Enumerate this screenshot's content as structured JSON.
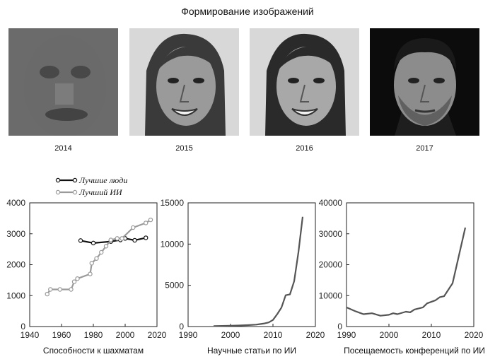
{
  "title": "Формирование изображений",
  "faces": [
    {
      "year": "2014",
      "tone": "#6a6a6a",
      "hair": "#2c2c2c",
      "style": "blurry"
    },
    {
      "year": "2015",
      "tone": "#9a9a9a",
      "hair": "#3a3a3a",
      "style": "woman"
    },
    {
      "year": "2016",
      "tone": "#a8a8a8",
      "hair": "#2a2a2a",
      "style": "woman"
    },
    {
      "year": "2017",
      "tone": "#8c8c8c",
      "hair": "#1a1a1a",
      "style": "man"
    }
  ],
  "chart_data": [
    {
      "type": "line",
      "xlabel": "Способности к шахматам",
      "xlim": [
        1940,
        2020
      ],
      "ylim": [
        0,
        4000
      ],
      "xticks": [
        1940,
        1960,
        1980,
        2000,
        2020
      ],
      "yticks": [
        0,
        1000,
        2000,
        3000,
        4000
      ],
      "legend": "top-left, above plot",
      "series": [
        {
          "name": "Лучшие люди",
          "color": "#111111",
          "markers": true,
          "x": [
            1972,
            1980,
            1991,
            1997,
            2000,
            2006,
            2013
          ],
          "y": [
            2780,
            2700,
            2750,
            2800,
            2850,
            2790,
            2870
          ]
        },
        {
          "name": "Лучший ИИ",
          "color": "#9a9a9a",
          "markers": true,
          "x": [
            1951,
            1953,
            1959,
            1966,
            1968,
            1970,
            1978,
            1979,
            1982,
            1985,
            1988,
            1991,
            1995,
            1998,
            2005,
            2013,
            2016
          ],
          "y": [
            1050,
            1200,
            1200,
            1200,
            1450,
            1550,
            1700,
            2050,
            2200,
            2400,
            2600,
            2800,
            2850,
            2850,
            3200,
            3350,
            3450
          ]
        }
      ]
    },
    {
      "type": "line",
      "xlabel": "Научные статьи по ИИ",
      "xlim": [
        1990,
        2020
      ],
      "ylim": [
        0,
        15000
      ],
      "xticks": [
        1990,
        2000,
        2010,
        2020
      ],
      "yticks": [
        0,
        5000,
        10000,
        15000
      ],
      "series": [
        {
          "color": "#555555",
          "x": [
            1996,
            1998,
            2000,
            2002,
            2004,
            2006,
            2007,
            2008,
            2009,
            2010,
            2011,
            2012,
            2013,
            2014,
            2015,
            2016,
            2017
          ],
          "y": [
            50,
            80,
            100,
            130,
            170,
            230,
            300,
            380,
            500,
            800,
            1500,
            2300,
            3800,
            3900,
            5500,
            9000,
            13300
          ]
        }
      ]
    },
    {
      "type": "line",
      "xlabel": "Посещаемость конференций по ИИ",
      "xlim": [
        1990,
        2020
      ],
      "ylim": [
        0,
        40000
      ],
      "xticks": [
        1990,
        2000,
        2010,
        2020
      ],
      "yticks": [
        0,
        10000,
        20000,
        30000,
        40000
      ],
      "series": [
        {
          "color": "#555555",
          "x": [
            1990,
            1992,
            1994,
            1996,
            1998,
            2000,
            2001,
            2002,
            2004,
            2005,
            2006,
            2008,
            2009,
            2011,
            2012,
            2013,
            2015,
            2017,
            2018
          ],
          "y": [
            6200,
            5000,
            4000,
            4300,
            3500,
            3800,
            4300,
            4000,
            4800,
            4600,
            5500,
            6200,
            7500,
            8500,
            9500,
            9800,
            14000,
            26000,
            32000
          ]
        }
      ]
    }
  ]
}
